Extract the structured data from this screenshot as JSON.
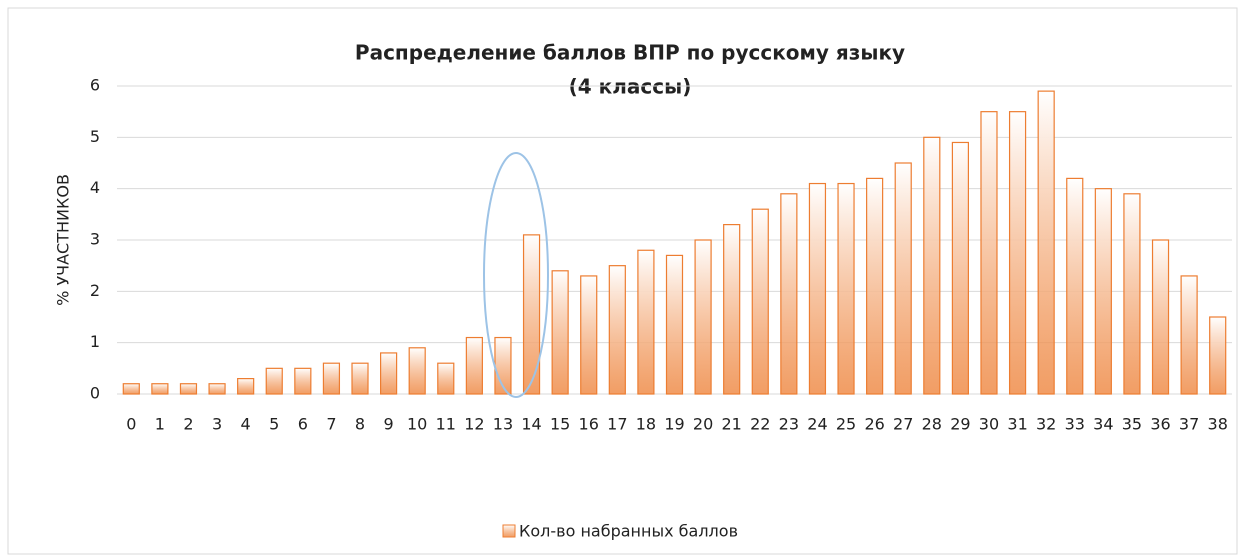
{
  "chart_data": {
    "type": "bar",
    "title": [
      "Распределение баллов ВПР по русскому языку",
      "(4 классы)"
    ],
    "y_label": "% УЧАСТНИКОВ",
    "categories": [
      "0",
      "1",
      "2",
      "3",
      "4",
      "5",
      "6",
      "7",
      "8",
      "9",
      "10",
      "11",
      "12",
      "13",
      "14",
      "15",
      "16",
      "17",
      "18",
      "19",
      "20",
      "21",
      "22",
      "23",
      "24",
      "25",
      "26",
      "27",
      "28",
      "29",
      "30",
      "31",
      "32",
      "33",
      "34",
      "35",
      "36",
      "37",
      "38"
    ],
    "series": [
      {
        "name": "Кол-во набранных баллов",
        "color": "#ed7d31",
        "values": [
          0.2,
          0.2,
          0.2,
          0.2,
          0.3,
          0.5,
          0.5,
          0.6,
          0.6,
          0.8,
          0.9,
          0.6,
          1.1,
          1.1,
          3.1,
          2.4,
          2.3,
          2.5,
          2.8,
          2.7,
          3.0,
          3.3,
          3.6,
          3.9,
          4.1,
          4.1,
          4.2,
          4.5,
          5.0,
          4.9,
          5.5,
          5.5,
          5.9,
          4.2,
          4.0,
          3.9,
          3.0,
          2.3,
          1.5
        ]
      }
    ],
    "ylim": [
      0,
      6
    ],
    "yticks": [
      0,
      1,
      2,
      3,
      4,
      5,
      6
    ],
    "grid": true,
    "legend": "bottom"
  }
}
